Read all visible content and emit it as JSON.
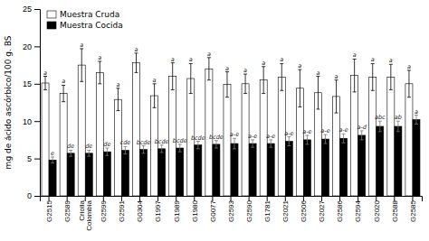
{
  "chart_data": {
    "type": "bar",
    "ylabel": "mg de ácido ascórbico/100 g. BS",
    "categories": [
      "G2515",
      "G2589",
      "Criolla\nColombia",
      "G2599",
      "G2591",
      "G0304",
      "G1997",
      "G1989",
      "G1980",
      "G0077",
      "G2593",
      "G2590",
      "G1781",
      "G2021",
      "G2506",
      "G2027",
      "G2586",
      "G2594",
      "G2020",
      "G2588",
      "G2585"
    ],
    "series": [
      {
        "name": "Muestra Cruda",
        "color": "white",
        "values": [
          15.1,
          13.7,
          17.5,
          16.5,
          12.9,
          17.8,
          13.4,
          16.0,
          15.7,
          17.0,
          14.9,
          15.0,
          15.5,
          15.9,
          14.4,
          13.8,
          13.3,
          16.1,
          15.9,
          15.9,
          15.0
        ],
        "errors": [
          0.9,
          1.1,
          2.2,
          1.5,
          1.5,
          1.3,
          1.6,
          1.8,
          2.0,
          1.5,
          1.7,
          1.3,
          1.8,
          1.8,
          2.5,
          2.2,
          2.2,
          2.2,
          1.8,
          1.7,
          1.8
        ],
        "annotations": [
          "a",
          "a",
          "a",
          "a",
          "a",
          "a",
          "a",
          "a",
          "a",
          "a",
          "a",
          "a",
          "a",
          "a",
          "a",
          "a",
          "a",
          "a",
          "a",
          "a",
          "a"
        ]
      },
      {
        "name": "Muestra Cocida",
        "color": "black",
        "values": [
          4.8,
          5.7,
          5.7,
          5.9,
          6.1,
          6.2,
          6.3,
          6.4,
          6.8,
          6.9,
          7.0,
          7.0,
          7.0,
          7.3,
          7.5,
          7.6,
          7.7,
          8.1,
          9.3,
          9.3,
          10.2
        ],
        "errors": [
          0.4,
          0.4,
          0.4,
          0.5,
          0.5,
          0.5,
          0.5,
          0.5,
          0.5,
          0.5,
          0.7,
          0.5,
          0.5,
          0.6,
          0.6,
          0.6,
          0.6,
          0.6,
          0.7,
          0.7,
          0.6
        ],
        "annotations": [
          "e",
          "de",
          "de",
          "de",
          "cde",
          "bcde",
          "bcde",
          "bcde",
          "bcde",
          "bcde",
          "a-e",
          "a-e",
          "a-e",
          "a-e",
          "a-e",
          "a-e",
          "a-e",
          "a-d",
          "abc",
          "ab",
          "a"
        ]
      }
    ],
    "ylim": [
      0,
      25
    ],
    "yticks": [
      0,
      5,
      10,
      15,
      20,
      25
    ],
    "legend": "upper left",
    "grid": false
  }
}
